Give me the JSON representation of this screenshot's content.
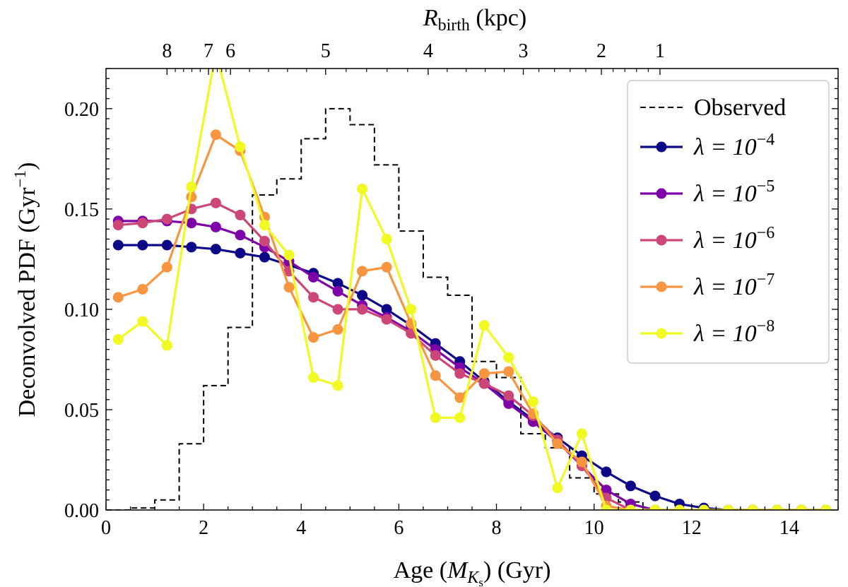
{
  "chart_data": {
    "type": "line",
    "xlabel_parts": {
      "prefix": "Age  (",
      "italic": "M",
      "sub": "K",
      "subsub": "s",
      "suffix": ")  (Gyr)"
    },
    "ylabel_parts": {
      "prefix": "Deconvolved PDF  (Gyr",
      "sup": "−1",
      "suffix": ")"
    },
    "top_label_parts": {
      "italic": "R",
      "sub": "birth",
      "suffix": "  (kpc)"
    },
    "xlim": [
      0,
      15
    ],
    "ylim": [
      0,
      0.22
    ],
    "x_ticks": [
      0,
      2,
      4,
      6,
      8,
      10,
      12,
      14
    ],
    "x_tick_labels": [
      "0",
      "2",
      "4",
      "6",
      "8",
      "10",
      "12",
      "14"
    ],
    "y_ticks": [
      0.0,
      0.05,
      0.1,
      0.15,
      0.2
    ],
    "y_tick_labels": [
      "0.00",
      "0.05",
      "0.10",
      "0.15",
      "0.20"
    ],
    "top_axis": {
      "major_ages": [
        1.25,
        2.1,
        2.55,
        4.5,
        6.6,
        8.55,
        10.15,
        11.35
      ],
      "major_labels": [
        "8",
        "7",
        "6",
        "5",
        "4",
        "3",
        "2",
        "1"
      ]
    },
    "observed": {
      "name": "Observed",
      "color": "#000000",
      "bin_edges": [
        0,
        0.5,
        1.0,
        1.5,
        2.0,
        2.5,
        3.0,
        3.5,
        4.0,
        4.5,
        5.0,
        5.5,
        6.0,
        6.5,
        7.0,
        7.5,
        8.0,
        8.5,
        9.0,
        9.5,
        10.0,
        10.5,
        11.0,
        11.5,
        12.0
      ],
      "values": [
        0.0,
        0.001,
        0.005,
        0.033,
        0.062,
        0.091,
        0.157,
        0.165,
        0.185,
        0.2,
        0.192,
        0.172,
        0.139,
        0.116,
        0.107,
        0.074,
        0.066,
        0.038,
        0.031,
        0.016,
        0.008,
        0.004,
        0.0,
        0.0
      ]
    },
    "x": [
      0.25,
      0.75,
      1.25,
      1.75,
      2.25,
      2.75,
      3.25,
      3.75,
      4.25,
      4.75,
      5.25,
      5.75,
      6.25,
      6.75,
      7.25,
      7.75,
      8.25,
      8.75,
      9.25,
      9.75,
      10.25,
      10.75,
      11.25,
      11.75,
      12.25,
      12.75,
      13.25,
      13.75,
      14.25,
      14.75
    ],
    "series": [
      {
        "name": "λ = 10",
        "exp": "−4",
        "color": "#0d0887",
        "values": [
          0.132,
          0.132,
          0.132,
          0.131,
          0.13,
          0.128,
          0.126,
          0.122,
          0.118,
          0.113,
          0.107,
          0.1,
          0.092,
          0.083,
          0.074,
          0.064,
          0.054,
          0.045,
          0.036,
          0.027,
          0.019,
          0.012,
          0.007,
          0.003,
          0.001,
          0.0,
          0.0,
          0.0,
          0.0,
          0.0
        ]
      },
      {
        "name": "λ = 10",
        "exp": "−5",
        "color": "#7e03a8",
        "values": [
          0.144,
          0.144,
          0.144,
          0.143,
          0.141,
          0.137,
          0.131,
          0.124,
          0.116,
          0.109,
          0.102,
          0.096,
          0.089,
          0.08,
          0.071,
          0.063,
          0.053,
          0.044,
          0.034,
          0.022,
          0.01,
          0.003,
          0.0,
          0.0,
          0.0,
          0.0,
          0.0,
          0.0,
          0.0,
          0.0
        ]
      },
      {
        "name": "λ = 10",
        "exp": "−6",
        "color": "#cc4778",
        "values": [
          0.142,
          0.143,
          0.145,
          0.15,
          0.153,
          0.147,
          0.134,
          0.119,
          0.106,
          0.1,
          0.1,
          0.095,
          0.088,
          0.077,
          0.068,
          0.063,
          0.057,
          0.047,
          0.035,
          0.022,
          0.006,
          0.0,
          0.0,
          0.0,
          0.0,
          0.0,
          0.0,
          0.0,
          0.0,
          0.0
        ]
      },
      {
        "name": "λ = 10",
        "exp": "−7",
        "color": "#f89540",
        "values": [
          0.106,
          0.11,
          0.121,
          0.156,
          0.187,
          0.179,
          0.146,
          0.111,
          0.086,
          0.09,
          0.119,
          0.121,
          0.093,
          0.067,
          0.056,
          0.068,
          0.069,
          0.048,
          0.033,
          0.024,
          0.002,
          0.0,
          0.0,
          0.0,
          0.0,
          0.0,
          0.0,
          0.0,
          0.0,
          0.0
        ]
      },
      {
        "name": "λ = 10",
        "exp": "−8",
        "color": "#f0f921",
        "values": [
          0.085,
          0.094,
          0.082,
          0.161,
          0.228,
          0.181,
          0.142,
          0.127,
          0.066,
          0.062,
          0.16,
          0.135,
          0.1,
          0.046,
          0.046,
          0.092,
          0.076,
          0.054,
          0.011,
          0.038,
          0.0,
          0.0,
          0.0,
          0.0,
          0.0,
          0.0,
          0.0,
          0.0,
          0.0,
          0.0
        ]
      }
    ]
  }
}
